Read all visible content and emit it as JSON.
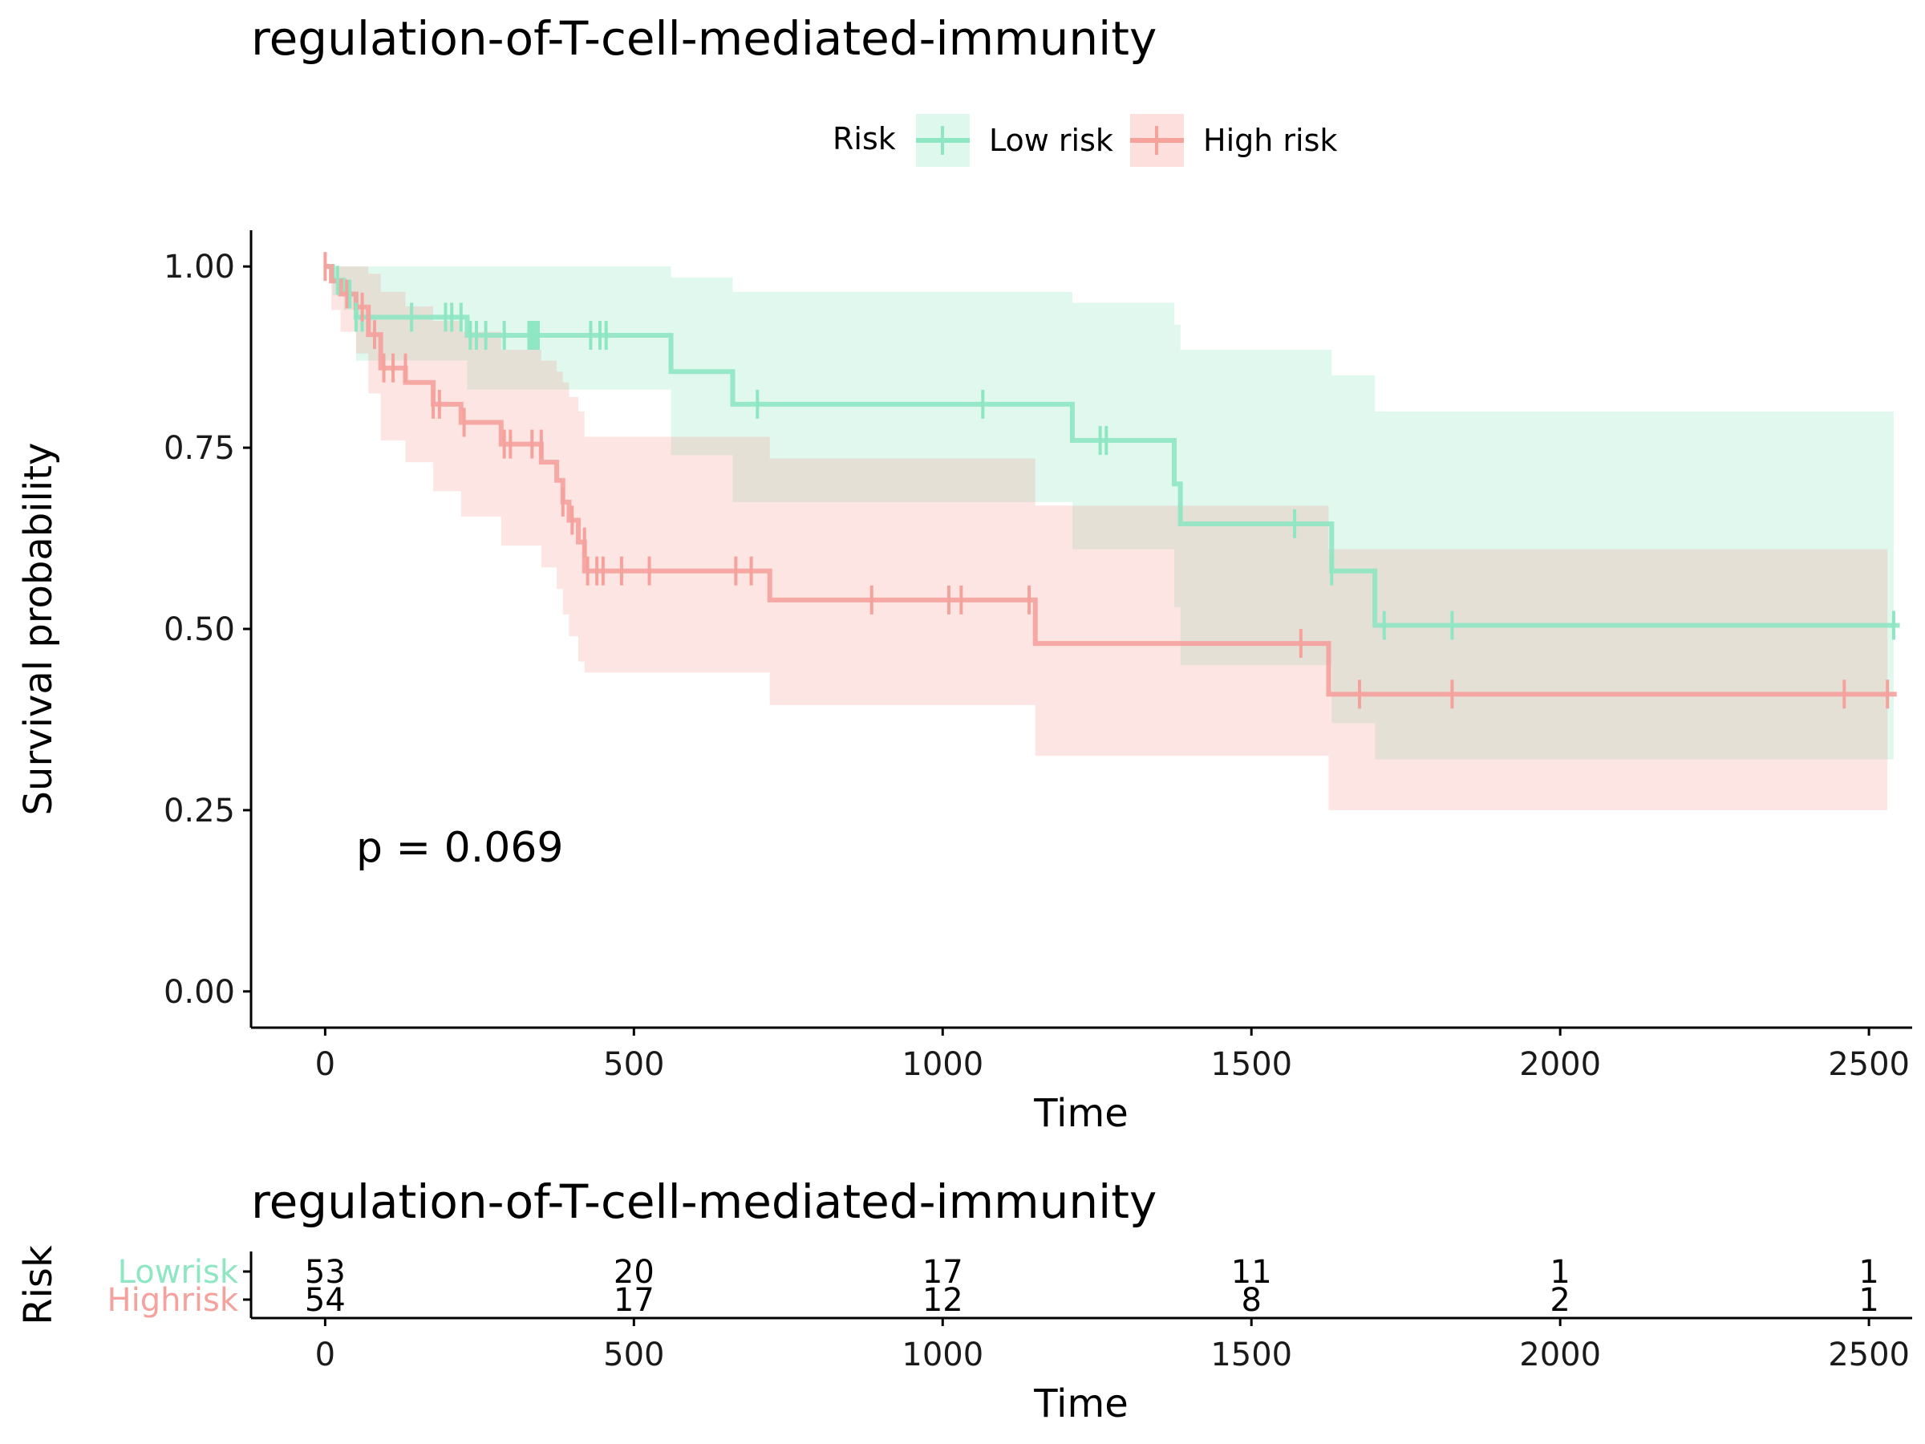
{
  "chart_data": [
    {
      "type": "line",
      "subtype": "kaplan-meier",
      "title": "regulation-of-T-cell-mediated-immunity",
      "xlabel": "Time",
      "ylabel": "Survival probability",
      "xlim": [
        -120,
        2570
      ],
      "ylim": [
        -0.05,
        1.05
      ],
      "xticks": [
        0,
        500,
        1000,
        1500,
        2000,
        2500
      ],
      "yticks": [
        0,
        0.25,
        0.5,
        0.75,
        1
      ],
      "ytick_labels": [
        "0.00",
        "0.25",
        "0.50",
        "0.75",
        "1.00"
      ],
      "grid": false,
      "legend": {
        "title": "Risk",
        "position": "top"
      },
      "annotation": "p = 0.069",
      "series": [
        {
          "name": "Low risk",
          "color": "#8EE6C3",
          "fill": "#DFF8EE",
          "steps": [
            [
              0,
              1.0
            ],
            [
              12,
              0.981
            ],
            [
              30,
              0.962
            ],
            [
              50,
              0.93
            ],
            [
              230,
              0.905
            ],
            [
              560,
              0.855
            ],
            [
              660,
              0.81
            ],
            [
              1210,
              0.76
            ],
            [
              1375,
              0.7
            ],
            [
              1385,
              0.645
            ],
            [
              1630,
              0.58
            ],
            [
              1700,
              0.505
            ],
            [
              2550,
              0.505
            ]
          ],
          "ci": [
            [
              0,
              1.0,
              1.0
            ],
            [
              12,
              0.96,
              1.0
            ],
            [
              30,
              0.94,
              1.0
            ],
            [
              50,
              0.87,
              1.0
            ],
            [
              230,
              0.83,
              1.0
            ],
            [
              560,
              0.74,
              0.985
            ],
            [
              660,
              0.675,
              0.965
            ],
            [
              1210,
              0.61,
              0.95
            ],
            [
              1375,
              0.53,
              0.92
            ],
            [
              1385,
              0.45,
              0.885
            ],
            [
              1630,
              0.37,
              0.85
            ],
            [
              1700,
              0.32,
              0.8
            ],
            [
              2540,
              0.32,
              0.8
            ]
          ],
          "censors": [
            [
              20,
              0.981
            ],
            [
              40,
              0.962
            ],
            [
              50,
              0.93
            ],
            [
              60,
              0.93
            ],
            [
              140,
              0.93
            ],
            [
              195,
              0.93
            ],
            [
              205,
              0.93
            ],
            [
              220,
              0.93
            ],
            [
              235,
              0.905
            ],
            [
              245,
              0.905
            ],
            [
              260,
              0.905
            ],
            [
              290,
              0.905
            ],
            [
              330,
              0.905
            ],
            [
              335,
              0.905
            ],
            [
              340,
              0.905
            ],
            [
              345,
              0.905
            ],
            [
              430,
              0.905
            ],
            [
              445,
              0.905
            ],
            [
              455,
              0.905
            ],
            [
              700,
              0.81
            ],
            [
              1065,
              0.81
            ],
            [
              1255,
              0.76
            ],
            [
              1265,
              0.76
            ],
            [
              1570,
              0.645
            ],
            [
              1630,
              0.58
            ],
            [
              1715,
              0.505
            ],
            [
              1825,
              0.505
            ],
            [
              2540,
              0.505
            ]
          ]
        },
        {
          "name": "High risk",
          "color": "#F5A19C",
          "fill": "#FDDFDE",
          "steps": [
            [
              0,
              1.0
            ],
            [
              10,
              0.98
            ],
            [
              25,
              0.962
            ],
            [
              50,
              0.944
            ],
            [
              70,
              0.906
            ],
            [
              90,
              0.86
            ],
            [
              130,
              0.84
            ],
            [
              175,
              0.81
            ],
            [
              220,
              0.785
            ],
            [
              285,
              0.755
            ],
            [
              350,
              0.73
            ],
            [
              375,
              0.705
            ],
            [
              385,
              0.675
            ],
            [
              395,
              0.65
            ],
            [
              410,
              0.62
            ],
            [
              420,
              0.58
            ],
            [
              720,
              0.54
            ],
            [
              1150,
              0.48
            ],
            [
              1625,
              0.41
            ],
            [
              2545,
              0.41
            ]
          ],
          "ci": [
            [
              0,
              1.0,
              1.0
            ],
            [
              10,
              0.94,
              1.0
            ],
            [
              25,
              0.91,
              1.0
            ],
            [
              50,
              0.88,
              1.0
            ],
            [
              70,
              0.825,
              0.99
            ],
            [
              90,
              0.76,
              0.965
            ],
            [
              130,
              0.73,
              0.945
            ],
            [
              175,
              0.69,
              0.925
            ],
            [
              220,
              0.655,
              0.91
            ],
            [
              285,
              0.615,
              0.885
            ],
            [
              350,
              0.585,
              0.87
            ],
            [
              375,
              0.555,
              0.855
            ],
            [
              385,
              0.52,
              0.84
            ],
            [
              395,
              0.49,
              0.82
            ],
            [
              410,
              0.455,
              0.8
            ],
            [
              420,
              0.44,
              0.765
            ],
            [
              720,
              0.395,
              0.735
            ],
            [
              1150,
              0.325,
              0.67
            ],
            [
              1625,
              0.25,
              0.61
            ],
            [
              2530,
              0.25,
              0.61
            ]
          ],
          "censors": [
            [
              0,
              1.0
            ],
            [
              35,
              0.962
            ],
            [
              60,
              0.944
            ],
            [
              80,
              0.906
            ],
            [
              95,
              0.86
            ],
            [
              110,
              0.86
            ],
            [
              130,
              0.86
            ],
            [
              175,
              0.81
            ],
            [
              185,
              0.81
            ],
            [
              225,
              0.785
            ],
            [
              290,
              0.755
            ],
            [
              300,
              0.755
            ],
            [
              335,
              0.755
            ],
            [
              350,
              0.755
            ],
            [
              385,
              0.675
            ],
            [
              400,
              0.65
            ],
            [
              420,
              0.62
            ],
            [
              425,
              0.58
            ],
            [
              440,
              0.58
            ],
            [
              450,
              0.58
            ],
            [
              480,
              0.58
            ],
            [
              525,
              0.58
            ],
            [
              665,
              0.58
            ],
            [
              690,
              0.58
            ],
            [
              885,
              0.54
            ],
            [
              1010,
              0.54
            ],
            [
              1030,
              0.54
            ],
            [
              1140,
              0.54
            ],
            [
              1580,
              0.48
            ],
            [
              1675,
              0.41
            ],
            [
              1825,
              0.41
            ],
            [
              2460,
              0.41
            ],
            [
              2530,
              0.41
            ]
          ]
        }
      ]
    },
    {
      "type": "table",
      "subtype": "risk-table",
      "title": "regulation-of-T-cell-mediated-immunity",
      "xlabel": "Time",
      "ylabel": "Risk",
      "xticks": [
        0,
        500,
        1000,
        1500,
        2000,
        2500
      ],
      "rows": [
        {
          "name": "Low risk",
          "label_parts": [
            "Low",
            "risk"
          ],
          "color": "#8EE6C3",
          "values": [
            53,
            20,
            17,
            11,
            1,
            1
          ]
        },
        {
          "name": "High risk",
          "label_parts": [
            "High",
            "risk"
          ],
          "color": "#F5A19C",
          "values": [
            54,
            17,
            12,
            8,
            2,
            1
          ]
        }
      ]
    }
  ]
}
